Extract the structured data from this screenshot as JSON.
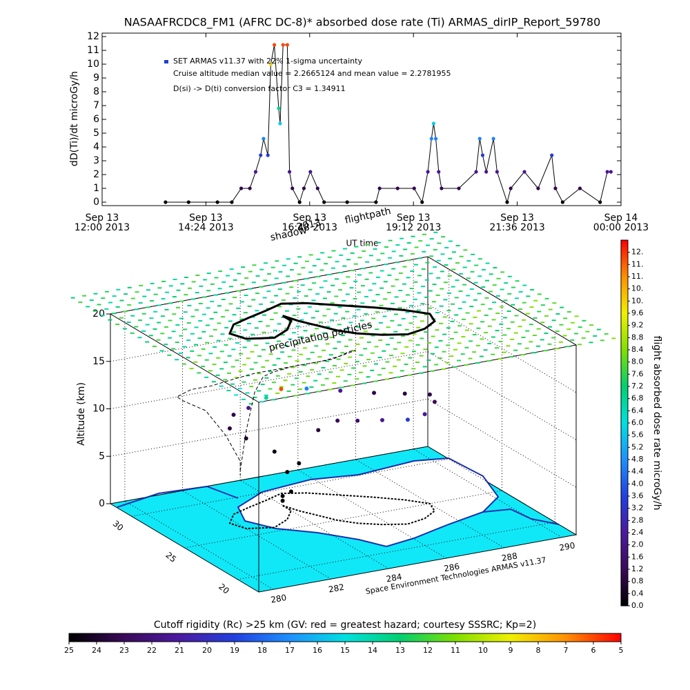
{
  "chart_data": [
    {
      "type": "line",
      "title": "NASAAFRCDC8_FM1 (AFRC DC-8)* absorbed dose rate (Ti) ARMAS_dirIP_Report_59780",
      "ylabel": "dD(Ti)/dt microGy/h",
      "xlabel": "UT time",
      "annotations": [
        "Cruise altitude median value = 2.2665124 and mean value = 2.2781955",
        "D(si) -> D(ti) conversion factor C3 = 1.34911"
      ],
      "x": [
        "2013-09-13 13:28",
        "2013-09-13 14:00",
        "2013-09-13 14:40",
        "2013-09-13 15:00",
        "2013-09-13 15:13",
        "2013-09-13 15:25",
        "2013-09-13 15:33",
        "2013-09-13 15:40",
        "2013-09-13 15:44",
        "2013-09-13 15:50",
        "2013-09-13 15:54",
        "2013-09-13 15:59",
        "2013-09-13 16:05",
        "2013-09-13 16:07",
        "2013-09-13 16:11",
        "2013-09-13 16:17",
        "2013-09-13 16:20",
        "2013-09-13 16:24",
        "2013-09-13 16:34",
        "2013-09-13 16:40",
        "2013-09-13 16:49",
        "2013-09-13 16:59",
        "2013-09-13 17:08",
        "2013-09-13 17:40",
        "2013-09-13 18:20",
        "2013-09-13 18:25",
        "2013-09-13 18:50",
        "2013-09-13 19:13",
        "2013-09-13 19:24",
        "2013-09-13 19:32",
        "2013-09-13 19:37",
        "2013-09-13 19:40",
        "2013-09-13 19:43",
        "2013-09-13 19:47",
        "2013-09-13 19:51",
        "2013-09-13 20:15",
        "2013-09-13 20:39",
        "2013-09-13 20:44",
        "2013-09-13 20:48",
        "2013-09-13 20:53",
        "2013-09-13 21:03",
        "2013-09-13 21:08",
        "2013-09-13 21:22",
        "2013-09-13 21:27",
        "2013-09-13 21:46",
        "2013-09-13 22:05",
        "2013-09-13 22:24",
        "2013-09-13 22:29",
        "2013-09-13 22:39",
        "2013-09-13 23:03",
        "2013-09-13 23:31",
        "2013-09-13 23:41",
        "2013-09-13 23:46"
      ],
      "series": [
        {
          "name": "SET ARMAS v11.37 with 22% 1-sigma uncertainty",
          "color": "#1f3fd0",
          "values": [
            0,
            0,
            0,
            0,
            1,
            1,
            2.2,
            3.4,
            4.6,
            3.4,
            10,
            11.4,
            6.8,
            5.7,
            11.4,
            11.4,
            2.2,
            1,
            0,
            1,
            2.2,
            1,
            0,
            0,
            0,
            1,
            1,
            1,
            0,
            2.2,
            4.6,
            5.7,
            4.6,
            2.2,
            1,
            1,
            2.2,
            4.6,
            3.4,
            2.2,
            4.6,
            2.2,
            0,
            1,
            2.2,
            1,
            3.4,
            1,
            0,
            1,
            0,
            2.2,
            2.2
          ]
        }
      ],
      "xlim": [
        "2013-09-13 12:00",
        "2013-09-14 00:00"
      ],
      "xticks": [
        {
          "value": "2013-09-13 12:00",
          "label": [
            "Sep 13",
            "12:00 2013"
          ]
        },
        {
          "value": "2013-09-13 14:24",
          "label": [
            "Sep 13",
            "14:24 2013"
          ]
        },
        {
          "value": "2013-09-13 16:48",
          "label": [
            "Sep 13",
            "16:48 2013"
          ]
        },
        {
          "value": "2013-09-13 19:12",
          "label": [
            "Sep 13",
            "19:12 2013"
          ]
        },
        {
          "value": "2013-09-13 21:36",
          "label": [
            "Sep 13",
            "21:36 2013"
          ]
        },
        {
          "value": "2013-09-14 00:00",
          "label": [
            "Sep 14",
            "00:00 2013"
          ]
        }
      ],
      "ylim": [
        0,
        12
      ],
      "yticks": [
        0,
        1,
        2,
        3,
        4,
        5,
        6,
        7,
        8,
        9,
        10,
        11,
        12
      ]
    },
    {
      "type": "colorbar",
      "title": "flight absorbed dose rate microGy/h",
      "clim": [
        0,
        12
      ],
      "colors": [
        "#000000",
        "#3a0a5a",
        "#4b1aa0",
        "#2040e0",
        "#1e90ff",
        "#00e0e0",
        "#00d070",
        "#7fe000",
        "#f0f000",
        "#ff9000",
        "#ff0000"
      ],
      "ticks": [
        {
          "value": 0,
          "label": "0.0"
        },
        0.4,
        0.8,
        1.2,
        1.6,
        {
          "value": 2,
          "label": "2.0"
        },
        2.4,
        2.8,
        3.2,
        3.6,
        {
          "value": 4,
          "label": "4.0"
        },
        4.4,
        4.8,
        5.2,
        5.6,
        {
          "value": 6,
          "label": "6.0"
        },
        6.4,
        6.8,
        7.2,
        7.6,
        {
          "value": 8,
          "label": "8.0"
        },
        8.4,
        8.8,
        9.2,
        9.6,
        {
          "value": 10,
          "label": "10."
        },
        {
          "value": 10.4,
          "label": "10."
        },
        {
          "value": 10.8,
          "label": "11."
        },
        {
          "value": 11.2,
          "label": "11."
        },
        {
          "value": 11.6,
          "label": "12."
        }
      ]
    },
    {
      "type": "scatter3d",
      "zlabel": "Altitude (km)",
      "annotations": [
        "shadow",
        "2013",
        "flightpath",
        "precipitating particles",
        "Space Environment Technologies ARMAS v11.37"
      ],
      "xlim": [
        279.5,
        290.5
      ],
      "xticks": [
        280,
        282,
        284,
        286,
        288,
        290
      ],
      "ylim": [
        18,
        32
      ],
      "yticks": [
        20,
        25,
        30
      ],
      "zlim": [
        0,
        20
      ],
      "zticks": [
        0,
        5,
        10,
        15,
        20
      ],
      "series": [
        {
          "lon": [
            284.0,
            284.2,
            284.5,
            284.8,
            285.2,
            285.8,
            286.5,
            287.2,
            287.8,
            288.0,
            287.5,
            286.8,
            286.0,
            285.2,
            284.5,
            283.8,
            283.0,
            282.3,
            281.8,
            282.0,
            282.8,
            283.5,
            284.0,
            284.0
          ],
          "lat": [
            28.0,
            27.0,
            26.0,
            25.0,
            24.2,
            23.5,
            23.0,
            23.3,
            24.0,
            25.0,
            26.0,
            27.0,
            28.0,
            29.0,
            29.5,
            29.0,
            28.5,
            28.0,
            27.0,
            26.0,
            25.5,
            26.2,
            27.2,
            28.0
          ],
          "alt": [
            1,
            5,
            9,
            10.5,
            10.8,
            11,
            11,
            11,
            11.5,
            11.5,
            11.2,
            11,
            11,
            11,
            11,
            10.8,
            10.5,
            10.5,
            10,
            9.5,
            8,
            5,
            2,
            0.5
          ],
          "dose": [
            0,
            0.2,
            0.8,
            1.2,
            1.5,
            2.2,
            3.4,
            2.2,
            1.2,
            1.0,
            0.8,
            1.0,
            2.2,
            4.6,
            11.4,
            6.8,
            2.2,
            1.0,
            0.8,
            0.5,
            0.3,
            0,
            0,
            0
          ]
        }
      ]
    },
    {
      "type": "colorbar",
      "title": "Cutoff rigidity (Rc) >25 km (GV: red = greatest hazard; courtesy SSSRC; Kp=2)",
      "clim": [
        25,
        5
      ],
      "ticks": [
        25,
        24,
        23,
        22,
        21,
        20,
        19,
        18,
        17,
        16,
        15,
        14,
        13,
        12,
        11,
        10,
        9,
        8,
        7,
        6,
        5
      ]
    }
  ]
}
